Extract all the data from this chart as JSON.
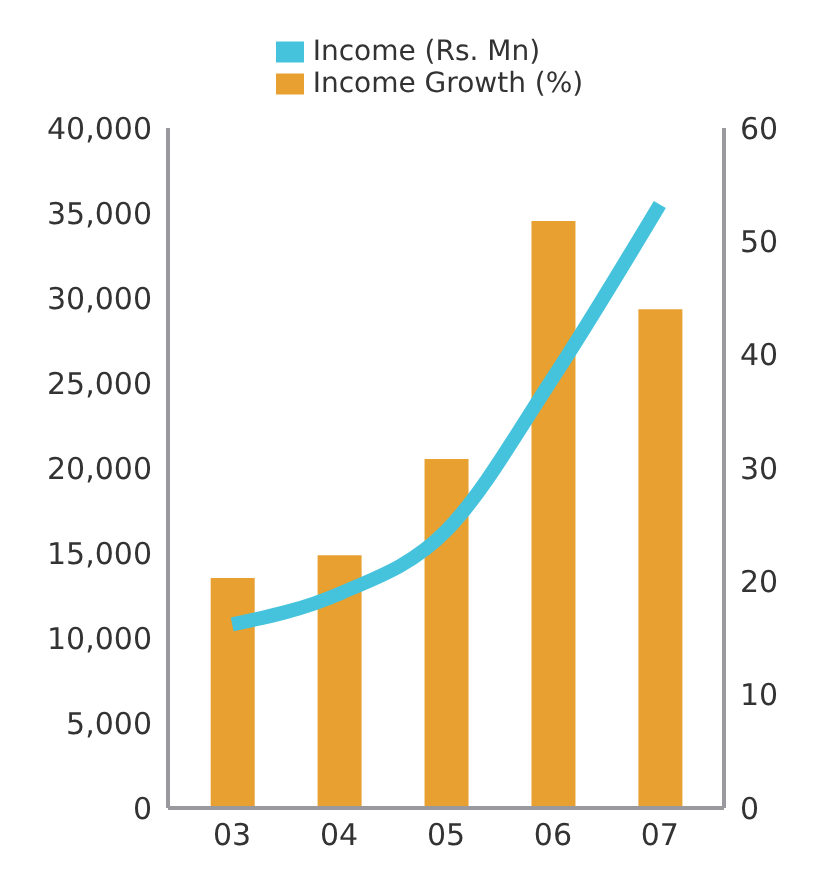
{
  "chart_data": {
    "type": "bar",
    "categories": [
      "03",
      "04",
      "05",
      "06",
      "07"
    ],
    "series": [
      {
        "name": "Income Growth (%)",
        "axis": "y2",
        "color": "#e8a030",
        "values": [
          20.3,
          22.3,
          30.8,
          51.8,
          44
        ]
      },
      {
        "name": "Income (Rs. Mn)",
        "type": "line",
        "color": "#45c3dc",
        "values": [
          10800,
          12600,
          16300,
          25300,
          35500
        ]
      }
    ],
    "ylim": [
      0,
      40000
    ],
    "yticks": [
      {
        "value": 0,
        "label": "0"
      },
      {
        "value": 5000,
        "label": "5,000"
      },
      {
        "value": 10000,
        "label": "10,000"
      },
      {
        "value": 15000,
        "label": "15,000"
      },
      {
        "value": 20000,
        "label": "20,000"
      },
      {
        "value": 25000,
        "label": "25,000"
      },
      {
        "value": 30000,
        "label": "30,000"
      },
      {
        "value": 35000,
        "label": "35,000"
      },
      {
        "value": 40000,
        "label": "40,000"
      }
    ],
    "y2lim": [
      0,
      60
    ],
    "y2ticks": [
      0,
      10,
      20,
      30,
      40,
      50,
      60
    ],
    "grid": false,
    "legend": "top",
    "marker": "none"
  }
}
